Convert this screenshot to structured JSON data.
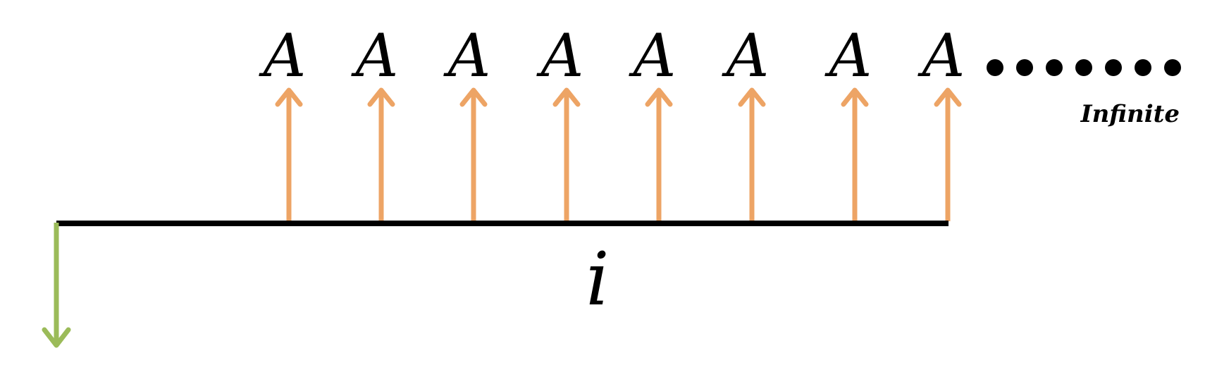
{
  "cash_flow": {
    "payment_label": "A",
    "payment_count": 8,
    "interest_label": "i",
    "continuation_label": "Infinite",
    "continuation_dots": 7
  },
  "colors": {
    "timeline": "#000000",
    "payment_arrow": "#EDA465",
    "present_value_arrow": "#9BBB59",
    "text": "#000000"
  }
}
